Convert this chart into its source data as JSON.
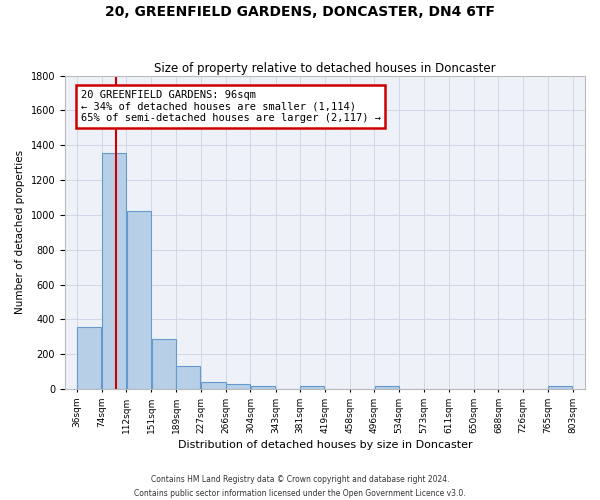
{
  "title": "20, GREENFIELD GARDENS, DONCASTER, DN4 6TF",
  "subtitle": "Size of property relative to detached houses in Doncaster",
  "xlabel": "Distribution of detached houses by size in Doncaster",
  "ylabel": "Number of detached properties",
  "bin_labels": [
    "36sqm",
    "74sqm",
    "112sqm",
    "151sqm",
    "189sqm",
    "227sqm",
    "266sqm",
    "304sqm",
    "343sqm",
    "381sqm",
    "419sqm",
    "458sqm",
    "496sqm",
    "534sqm",
    "573sqm",
    "611sqm",
    "650sqm",
    "688sqm",
    "726sqm",
    "765sqm",
    "803sqm"
  ],
  "bar_heights": [
    355,
    1355,
    1020,
    290,
    130,
    40,
    30,
    20,
    0,
    15,
    0,
    0,
    15,
    0,
    0,
    0,
    0,
    0,
    0,
    15
  ],
  "bar_color": "#b8cfe8",
  "bar_edge_color": "#6699cc",
  "property_line_x": 96,
  "bin_edges": [
    36,
    74,
    112,
    151,
    189,
    227,
    266,
    304,
    343,
    381,
    419,
    458,
    496,
    534,
    573,
    611,
    650,
    688,
    726,
    765,
    803
  ],
  "ylim": [
    0,
    1800
  ],
  "annotation_title": "20 GREENFIELD GARDENS: 96sqm",
  "annotation_line1": "← 34% of detached houses are smaller (1,114)",
  "annotation_line2": "65% of semi-detached houses are larger (2,117) →",
  "annotation_box_color": "#ffffff",
  "annotation_box_edge": "#cc0000",
  "red_line_color": "#cc0000",
  "footer_line1": "Contains HM Land Registry data © Crown copyright and database right 2024.",
  "footer_line2": "Contains public sector information licensed under the Open Government Licence v3.0.",
  "background_color": "#ffffff",
  "plot_bg_color": "#eef2f8",
  "grid_color": "#d0d8e8"
}
